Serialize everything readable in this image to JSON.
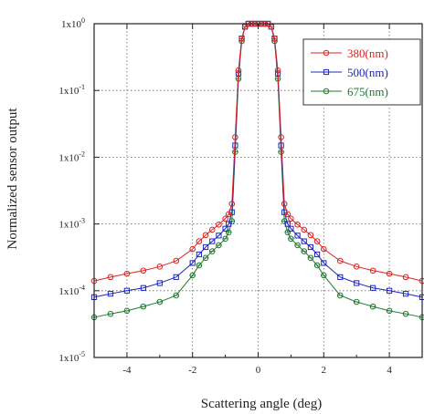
{
  "chart_data": {
    "type": "scatter",
    "xlabel": "Scattering angle (deg)",
    "ylabel": "Normalized sensor output",
    "xlim": [
      -5,
      5
    ],
    "ylim": [
      1e-05,
      1
    ],
    "y_scale": "log",
    "grid": true,
    "legend_position": "top-right",
    "x_ticks": [
      {
        "value": -4,
        "label": "-4"
      },
      {
        "value": -2,
        "label": "-2"
      },
      {
        "value": 0,
        "label": "0"
      },
      {
        "value": 2,
        "label": "2"
      },
      {
        "value": 4,
        "label": "4"
      }
    ],
    "y_ticks": [
      {
        "value": 1,
        "label": "1x10",
        "exp": "0"
      },
      {
        "value": 0.1,
        "label": "1x10",
        "exp": "-1"
      },
      {
        "value": 0.01,
        "label": "1x10",
        "exp": "-2"
      },
      {
        "value": 0.001,
        "label": "1x10",
        "exp": "-3"
      },
      {
        "value": 0.0001,
        "label": "1x10",
        "exp": "-4"
      },
      {
        "value": 1e-05,
        "label": "1x10",
        "exp": "-5"
      }
    ],
    "series": [
      {
        "name": "380(nm)",
        "color": "#e02020",
        "marker": "circle",
        "x": [
          -5,
          -4.5,
          -4,
          -3.5,
          -3,
          -2.5,
          -2,
          -1.8,
          -1.6,
          -1.4,
          -1.2,
          -1,
          -0.9,
          -0.8,
          -0.7,
          -0.6,
          -0.5,
          -0.4,
          -0.3,
          -0.2,
          -0.1,
          0,
          0.1,
          0.2,
          0.3,
          0.4,
          0.5,
          0.6,
          0.7,
          0.8,
          0.9,
          1,
          1.2,
          1.4,
          1.6,
          1.8,
          2,
          2.5,
          3,
          3.5,
          4,
          4.5,
          5
        ],
        "y": [
          0.00014,
          0.00016,
          0.00018,
          0.0002,
          0.00023,
          0.00028,
          0.00042,
          0.00055,
          0.00068,
          0.00082,
          0.00098,
          0.0012,
          0.0014,
          0.002,
          0.02,
          0.2,
          0.6,
          0.9,
          1,
          1,
          1,
          1,
          1,
          1,
          1,
          0.9,
          0.6,
          0.2,
          0.02,
          0.002,
          0.0014,
          0.0012,
          0.00098,
          0.00082,
          0.00068,
          0.00055,
          0.00042,
          0.00028,
          0.00023,
          0.0002,
          0.00018,
          0.00016,
          0.00014
        ]
      },
      {
        "name": "500(nm)",
        "color": "#1a24c8",
        "marker": "square",
        "x": [
          -5,
          -4.5,
          -4,
          -3.5,
          -3,
          -2.5,
          -2,
          -1.8,
          -1.6,
          -1.4,
          -1.2,
          -1,
          -0.9,
          -0.8,
          -0.7,
          -0.6,
          -0.5,
          -0.4,
          -0.3,
          -0.2,
          -0.1,
          0,
          0.1,
          0.2,
          0.3,
          0.4,
          0.5,
          0.6,
          0.7,
          0.8,
          0.9,
          1,
          1.2,
          1.4,
          1.6,
          1.8,
          2,
          2.5,
          3,
          3.5,
          4,
          4.5,
          5
        ],
        "y": [
          8e-05,
          9e-05,
          0.0001,
          0.00011,
          0.00013,
          0.00016,
          0.00026,
          0.00035,
          0.00045,
          0.00055,
          0.00067,
          0.00085,
          0.001,
          0.0015,
          0.015,
          0.18,
          0.6,
          0.9,
          1,
          1,
          1,
          1,
          1,
          1,
          1,
          0.9,
          0.6,
          0.18,
          0.015,
          0.0015,
          0.001,
          0.00085,
          0.00067,
          0.00055,
          0.00045,
          0.00035,
          0.00026,
          0.00016,
          0.00013,
          0.00011,
          0.0001,
          9e-05,
          8e-05
        ]
      },
      {
        "name": "675(nm)",
        "color": "#1e7a2e",
        "marker": "circle-cross",
        "x": [
          -5,
          -4.5,
          -4,
          -3.5,
          -3,
          -2.5,
          -2,
          -1.8,
          -1.6,
          -1.4,
          -1.2,
          -1,
          -0.9,
          -0.8,
          -0.7,
          -0.6,
          -0.5,
          -0.4,
          -0.3,
          -0.2,
          -0.1,
          0,
          0.1,
          0.2,
          0.3,
          0.4,
          0.5,
          0.6,
          0.7,
          0.8,
          0.9,
          1,
          1.2,
          1.4,
          1.6,
          1.8,
          2,
          2.5,
          3,
          3.5,
          4,
          4.5,
          5
        ],
        "y": [
          4e-05,
          4.5e-05,
          5e-05,
          5.8e-05,
          6.8e-05,
          8.5e-05,
          0.00017,
          0.00024,
          0.00031,
          0.00039,
          0.00048,
          0.0006,
          0.00075,
          0.0011,
          0.012,
          0.15,
          0.55,
          0.9,
          1,
          1,
          1,
          1,
          1,
          1,
          1,
          0.9,
          0.55,
          0.15,
          0.012,
          0.0011,
          0.00075,
          0.0006,
          0.00048,
          0.00039,
          0.00031,
          0.00024,
          0.00017,
          8.5e-05,
          6.8e-05,
          5.8e-05,
          5e-05,
          4.5e-05,
          4e-05
        ]
      }
    ]
  }
}
